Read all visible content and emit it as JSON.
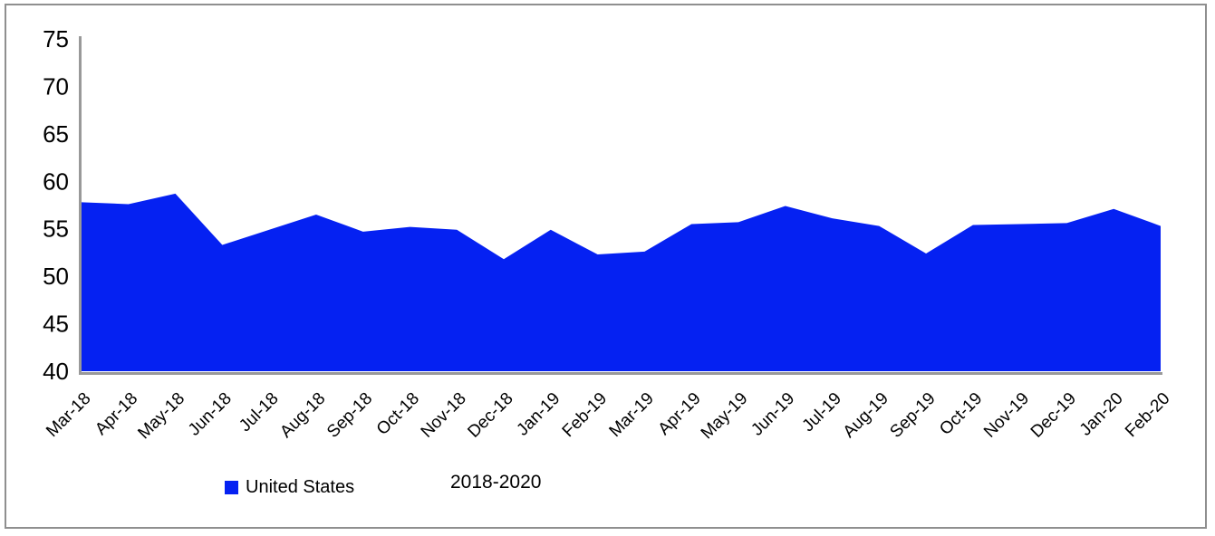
{
  "window": {
    "background": "#ffffff",
    "border_color": "#8f8f8f"
  },
  "legend": {
    "label": "United States",
    "swatch_color": "#0521f2"
  },
  "caption": {
    "text": "2018-2020"
  },
  "chart_data": {
    "type": "area",
    "title": "",
    "series_label": "United States",
    "caption": "2018-2020",
    "categories": [
      "Mar-18",
      "Apr-18",
      "May-18",
      "Jun-18",
      "Jul-18",
      "Aug-18",
      "Sep-18",
      "Oct-18",
      "Nov-18",
      "Dec-18",
      "Jan-19",
      "Feb-19",
      "Mar-19",
      "Apr-19",
      "May-19",
      "Jun-19",
      "Jul-19",
      "Aug-19",
      "Sep-19",
      "Oct-19",
      "Nov-19",
      "Dec-19",
      "Jan-20",
      "Feb-20"
    ],
    "values": [
      57.8,
      57.6,
      58.7,
      53.3,
      54.9,
      56.5,
      54.7,
      55.2,
      54.9,
      51.8,
      54.9,
      52.3,
      52.6,
      55.5,
      55.7,
      57.4,
      56.1,
      55.3,
      52.4,
      55.4,
      55.5,
      55.6,
      57.1,
      55.3
    ],
    "ylim": [
      40,
      75
    ],
    "yticks": [
      75,
      70,
      65,
      60,
      55,
      50,
      45,
      40
    ],
    "grid": false,
    "legend_position": "bottom",
    "fill_color": "#0521f2",
    "axis_color": "#999999",
    "text_color": "#000000"
  }
}
